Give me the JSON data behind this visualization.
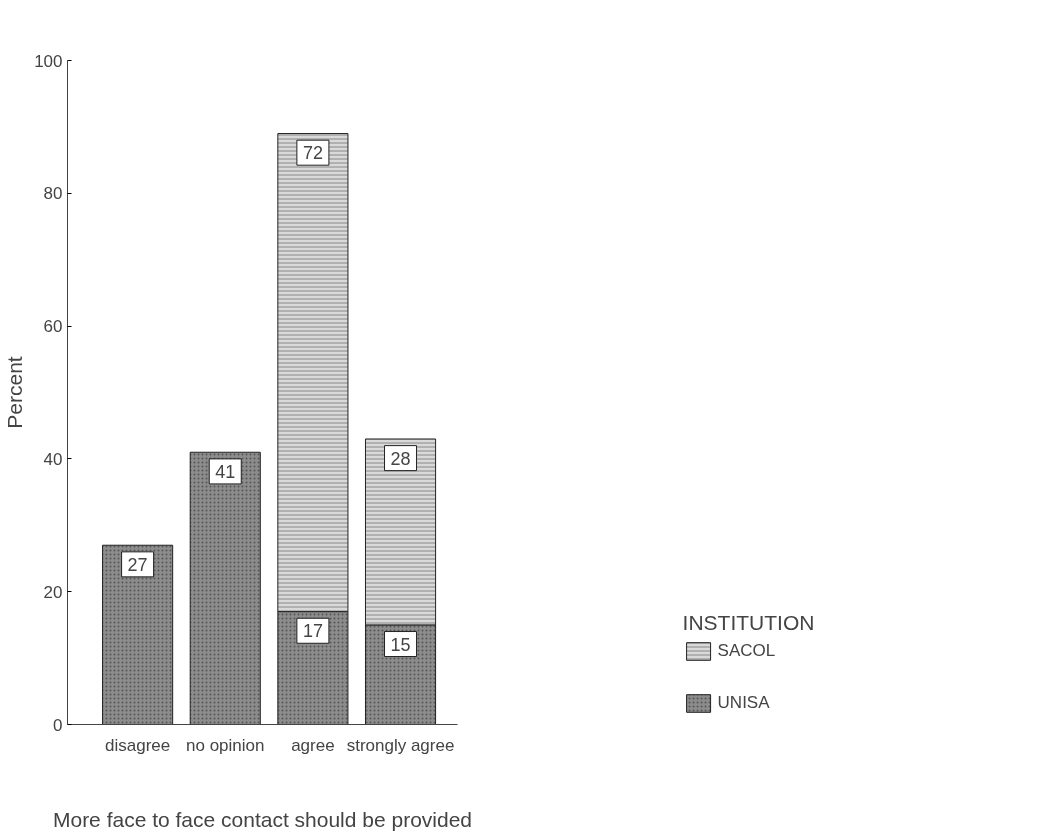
{
  "chart_data": {
    "type": "bar",
    "stacked": true,
    "categories": [
      "disagree",
      "no opinion",
      "agree",
      "strongly agree"
    ],
    "xlabel": "More face to face contact should be provided",
    "ylabel": "Percent",
    "legend_title": "INSTITUTION",
    "series": [
      {
        "name": "UNISA",
        "color": "#8c8c8c",
        "values": [
          27,
          41,
          17,
          15
        ]
      },
      {
        "name": "SACOL",
        "color": "#d9d9d9",
        "values": [
          null,
          null,
          72,
          28
        ]
      }
    ],
    "ylim": [
      0,
      100
    ],
    "yticks": [
      0,
      20,
      40,
      60,
      80,
      100
    ],
    "data_labels": true,
    "grid": false,
    "legend": "right"
  }
}
